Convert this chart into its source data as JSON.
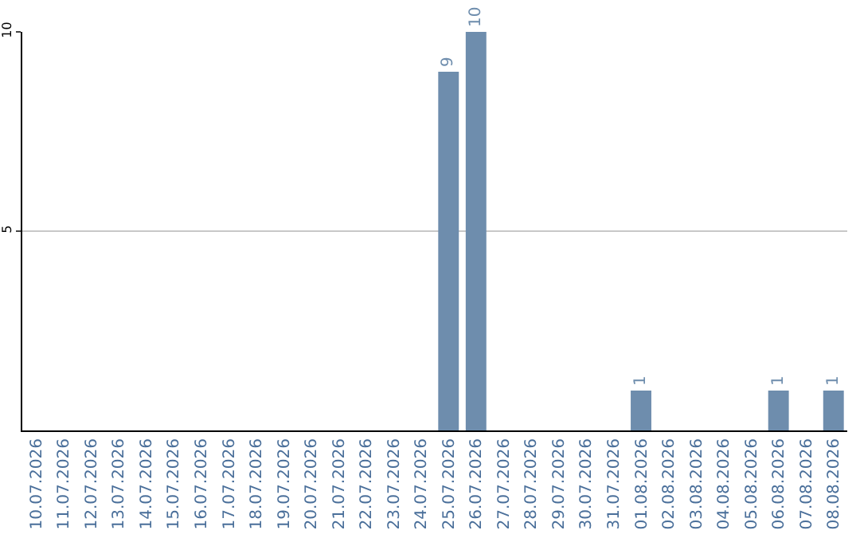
{
  "chart_data": {
    "type": "bar",
    "categories": [
      "10.07.2026",
      "11.07.2026",
      "12.07.2026",
      "13.07.2026",
      "14.07.2026",
      "15.07.2026",
      "16.07.2026",
      "17.07.2026",
      "18.07.2026",
      "19.07.2026",
      "20.07.2026",
      "21.07.2026",
      "22.07.2026",
      "23.07.2026",
      "24.07.2026",
      "25.07.2026",
      "26.07.2026",
      "27.07.2026",
      "28.07.2026",
      "29.07.2026",
      "30.07.2026",
      "31.07.2026",
      "01.08.2026",
      "02.08.2026",
      "03.08.2026",
      "04.08.2026",
      "05.08.2026",
      "06.08.2026",
      "07.08.2026",
      "08.08.2026"
    ],
    "values": [
      0,
      0,
      0,
      0,
      0,
      0,
      0,
      0,
      0,
      0,
      0,
      0,
      0,
      0,
      0,
      9,
      10,
      0,
      0,
      0,
      0,
      0,
      1,
      0,
      0,
      0,
      0,
      1,
      0,
      1
    ],
    "value_labels": [
      null,
      null,
      null,
      null,
      null,
      null,
      null,
      null,
      null,
      null,
      null,
      null,
      null,
      null,
      null,
      "9",
      "10",
      null,
      null,
      null,
      null,
      null,
      "1",
      null,
      null,
      null,
      null,
      "1",
      null,
      "1"
    ],
    "color": "#6e8dad",
    "ylim": [
      0,
      10
    ],
    "yticks": [
      5,
      10
    ],
    "grid": "y"
  }
}
